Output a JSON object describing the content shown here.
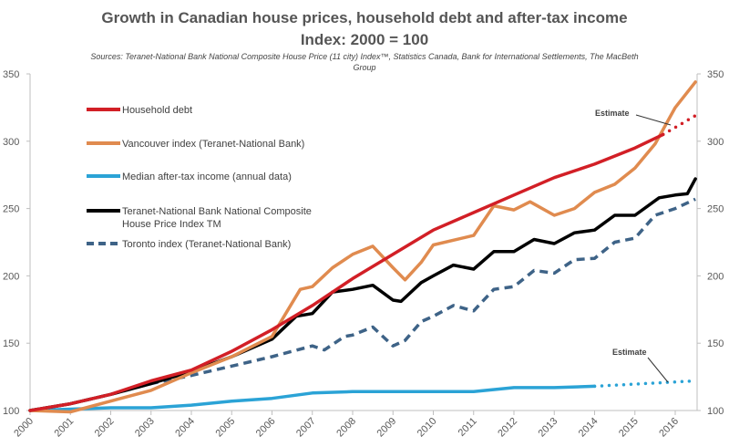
{
  "chart_data": {
    "type": "line",
    "title": "Growth in Canadian house prices, household debt and after-tax income",
    "subtitle": "Index: 2000 = 100",
    "sources": "Sources: Teranet-National Bank National Composite House Price (11 city) Index™, Statistics Canada, Bank for International Settlements, The MacBeth Group",
    "xlabel": "",
    "ylabel": "",
    "xlim": [
      2000,
      2016.6
    ],
    "ylim": [
      100,
      350
    ],
    "x_ticks": [
      "2000",
      "2001",
      "2002",
      "2003",
      "2004",
      "2005",
      "2006",
      "2007",
      "2008",
      "2009",
      "2010",
      "2011",
      "2012",
      "2013",
      "2014",
      "2015",
      "2016"
    ],
    "y_ticks": [
      "100",
      "150",
      "200",
      "250",
      "300",
      "350"
    ],
    "grid": false,
    "legend_placement": "top-left",
    "series": [
      {
        "name": "Household debt",
        "color": "#d21f26",
        "style": "solid",
        "x": [
          2000,
          2001,
          2002,
          2003,
          2004,
          2005,
          2006,
          2007,
          2008,
          2009,
          2010,
          2011,
          2012,
          2013,
          2014,
          2015,
          2015.7
        ],
        "values": [
          100,
          105,
          112,
          122,
          130,
          144,
          160,
          178,
          198,
          216,
          234,
          247,
          260,
          273,
          283,
          295,
          305
        ],
        "estimate": {
          "x": [
            2015.7,
            2016.5
          ],
          "values": [
            305,
            319
          ]
        }
      },
      {
        "name": "Vancouver index (Teranet-National Bank)",
        "color": "#e08b4f",
        "style": "solid",
        "x": [
          2000,
          2001,
          2002,
          2003,
          2004,
          2005,
          2006,
          2006.7,
          2007,
          2007.5,
          2008,
          2008.5,
          2009,
          2009.3,
          2009.7,
          2010,
          2011,
          2011.5,
          2012,
          2012.4,
          2013,
          2013.5,
          2014,
          2014.5,
          2015,
          2015.5,
          2016,
          2016.5
        ],
        "values": [
          100,
          99,
          107,
          115,
          128,
          140,
          155,
          190,
          192,
          206,
          216,
          222,
          206,
          197,
          210,
          223,
          230,
          252,
          249,
          255,
          245,
          250,
          262,
          268,
          280,
          298,
          325,
          344
        ]
      },
      {
        "name": "Median after-tax income (annual data)",
        "color": "#2ba3d6",
        "style": "solid",
        "x": [
          2000,
          2001,
          2002,
          2003,
          2004,
          2005,
          2006,
          2007,
          2008,
          2009,
          2010,
          2011,
          2012,
          2013,
          2014
        ],
        "values": [
          100,
          101,
          102,
          102,
          104,
          107,
          109,
          113,
          114,
          114,
          114,
          114,
          117,
          117,
          118
        ],
        "estimate": {
          "x": [
            2014,
            2016.5
          ],
          "values": [
            118,
            122
          ]
        }
      },
      {
        "name": "Teranet-National Bank National Composite House Price Index TM",
        "color": "#000000",
        "style": "solid",
        "x": [
          2000,
          2001,
          2002,
          2003,
          2004,
          2005,
          2006,
          2006.6,
          2007,
          2007.5,
          2008,
          2008.5,
          2009,
          2009.2,
          2009.7,
          2010,
          2010.5,
          2011,
          2011.5,
          2012,
          2012.5,
          2013,
          2013.5,
          2014,
          2014.5,
          2015,
          2015.6,
          2016,
          2016.3,
          2016.5
        ],
        "values": [
          100,
          105,
          112,
          120,
          129,
          140,
          153,
          170,
          172,
          188,
          190,
          193,
          182,
          181,
          195,
          200,
          208,
          205,
          218,
          218,
          227,
          224,
          232,
          234,
          245,
          245,
          258,
          260,
          261,
          272
        ]
      },
      {
        "name": "Toronto index (Teranet-National Bank)",
        "color": "#3e6387",
        "style": "dashed",
        "x": [
          2000,
          2001,
          2002,
          2003,
          2004,
          2005,
          2006,
          2007,
          2007.3,
          2007.8,
          2008,
          2008.5,
          2009,
          2009.3,
          2009.7,
          2010,
          2010.5,
          2011,
          2011.5,
          2012,
          2012.5,
          2013,
          2013.5,
          2014,
          2014.5,
          2015,
          2015.5,
          2016,
          2016.5
        ],
        "values": [
          100,
          105,
          112,
          120,
          126,
          133,
          140,
          148,
          145,
          155,
          156,
          162,
          148,
          152,
          166,
          170,
          178,
          174,
          190,
          192,
          204,
          202,
          212,
          213,
          225,
          228,
          245,
          250,
          257
        ]
      }
    ],
    "annotations": [
      {
        "text": "Estimate",
        "target_series": "Household debt"
      },
      {
        "text": "Estimate",
        "target_series": "Median after-tax income (annual data)"
      }
    ]
  },
  "legend": {
    "items": [
      {
        "label": "Household debt"
      },
      {
        "label": "Vancouver index (Teranet-National Bank)"
      },
      {
        "label": "Median after-tax income (annual data)"
      },
      {
        "label_line1": "Teranet-National Bank National Composite",
        "label_line2": "House Price Index TM"
      },
      {
        "label": "Toronto index (Teranet-National Bank)"
      }
    ]
  },
  "annotation_labels": {
    "debt_estimate": "Estimate",
    "income_estimate": "Estimate"
  }
}
